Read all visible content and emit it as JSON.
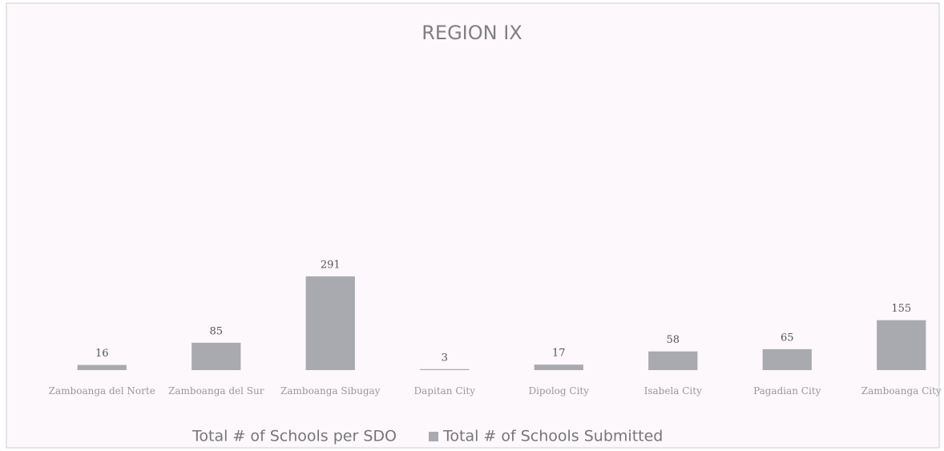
{
  "chart_data": {
    "type": "bar",
    "title": "REGION IX",
    "categories": [
      "Zamboanga del Norte",
      "Zamboanga del Sur",
      "Zamboanga Sibugay",
      "Dapitan City",
      "Dipolog City",
      "Isabela City",
      "Pagadian City",
      "Zamboanga City"
    ],
    "series": [
      {
        "name": "Total # of Schools per SDO",
        "values": [
          null,
          null,
          null,
          null,
          null,
          null,
          null,
          null
        ]
      },
      {
        "name": "Total # of Schools Submitted",
        "color": "#a9aab0",
        "values": [
          16,
          85,
          291,
          3,
          17,
          58,
          65,
          155
        ]
      }
    ],
    "ylim": [
      0,
      1000
    ],
    "legend": "bottom"
  }
}
